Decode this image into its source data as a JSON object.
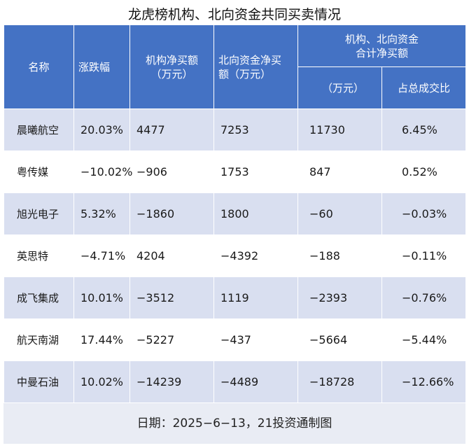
{
  "title": "龙虎榜机构、北向资金共同买卖情况",
  "headers": {
    "name": "名称",
    "change": "涨跌幅",
    "inst": "机构净买额\n（万元）",
    "north": "北向资金净买\n额（万元）",
    "group": "机构、北向资金\n合计净买额",
    "total_unit": "（万元）",
    "ratio": "占总成交比"
  },
  "rows": [
    {
      "name": "晨曦航空",
      "change": "20.03%",
      "inst": "4477",
      "north": "7253",
      "total": "11730",
      "ratio": "6.45%"
    },
    {
      "name": "粤传媒",
      "change": "−10.02%",
      "inst": "−906",
      "north": "1753",
      "total": "847",
      "ratio": "0.52%"
    },
    {
      "name": "旭光电子",
      "change": "5.32%",
      "inst": "−1860",
      "north": "1800",
      "total": "−60",
      "ratio": "−0.03%"
    },
    {
      "name": "英思特",
      "change": "−4.71%",
      "inst": "4204",
      "north": "−4392",
      "total": "−188",
      "ratio": "−0.11%"
    },
    {
      "name": "成飞集成",
      "change": "10.01%",
      "inst": "−3512",
      "north": "1119",
      "total": "−2393",
      "ratio": "−0.76%"
    },
    {
      "name": "航天南湖",
      "change": "17.44%",
      "inst": "−5227",
      "north": "−437",
      "total": "−5664",
      "ratio": "−5.44%"
    },
    {
      "name": "中曼石油",
      "change": "10.02%",
      "inst": "−14239",
      "north": "−4489",
      "total": "−18728",
      "ratio": "−12.66%"
    }
  ],
  "footer": "日期：2025−6−13，21投资通制图",
  "colors": {
    "header_bg": "#4472c4",
    "row_alt": "#d9dff0",
    "footer_bg": "#e9ecf4"
  }
}
